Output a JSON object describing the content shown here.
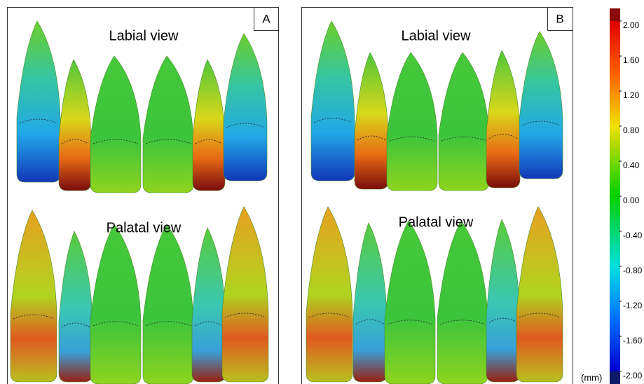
{
  "panels": [
    {
      "label": "A",
      "views": [
        "Labial view",
        "Palatal view"
      ]
    },
    {
      "label": "B",
      "views": [
        "Labial view",
        "Palatal view"
      ]
    }
  ],
  "colorbar": {
    "ticks": [
      "2.00",
      "1.60",
      "1.20",
      "0.80",
      "0.40",
      "0.00",
      "-0.40",
      "-0.80",
      "-1.20",
      "-1.60",
      "-2.00"
    ],
    "unit": "(mm)"
  }
}
